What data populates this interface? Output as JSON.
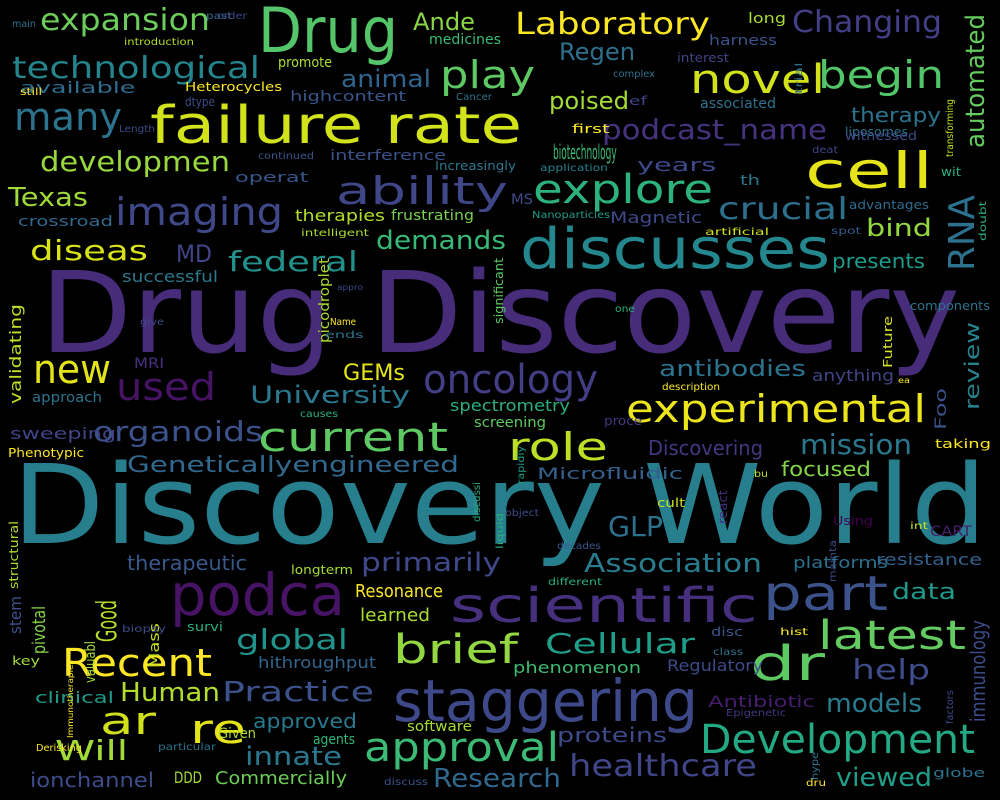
{
  "background": "#000000",
  "words": [
    {
      "text": "Drug Discovery",
      "color": "#472c7a"
    },
    {
      "text": "Discovery World",
      "color": "#277f8e"
    },
    {
      "text": "failure rate",
      "color": "#d2e21b"
    },
    {
      "text": "discusses",
      "color": "#24878e"
    },
    {
      "text": "staggering",
      "color": "#3e4989"
    },
    {
      "text": "Drug",
      "color": "#54c568"
    },
    {
      "text": "scientific",
      "color": "#46307e"
    },
    {
      "text": "podca",
      "color": "#471365"
    },
    {
      "text": "experimental",
      "color": "#ece51b"
    },
    {
      "text": "Development",
      "color": "#23a983"
    },
    {
      "text": "part",
      "color": "#3b528b"
    },
    {
      "text": "ability",
      "color": "#3f4788"
    },
    {
      "text": "oncology",
      "color": "#433e85"
    },
    {
      "text": "explore",
      "color": "#2db27d"
    },
    {
      "text": "cell",
      "color": "#e5e419"
    },
    {
      "text": "approval",
      "color": "#3bbb75"
    },
    {
      "text": "imaging",
      "color": "#3f4889"
    },
    {
      "text": "many",
      "color": "#2c738e"
    },
    {
      "text": "novel",
      "color": "#d2e21b"
    },
    {
      "text": "begin",
      "color": "#52c569"
    },
    {
      "text": "RNA",
      "color": "#2c728e"
    },
    {
      "text": "latest",
      "color": "#63cb5f"
    },
    {
      "text": "Recent",
      "color": "#fde725"
    },
    {
      "text": "brief",
      "color": "#93d741"
    },
    {
      "text": "dr",
      "color": "#5ec962"
    },
    {
      "text": "current",
      "color": "#5ec962"
    },
    {
      "text": "role",
      "color": "#bddf26"
    },
    {
      "text": "healthcare",
      "color": "#404688"
    },
    {
      "text": "new",
      "color": "#e2e418"
    },
    {
      "text": "used",
      "color": "#471365"
    },
    {
      "text": "re",
      "color": "#e5e419"
    },
    {
      "text": "ar",
      "color": "#d0e11c"
    },
    {
      "text": "Practice",
      "color": "#3b528b"
    },
    {
      "text": "play",
      "color": "#5ec962"
    },
    {
      "text": "technological",
      "color": "#25858e"
    },
    {
      "text": "expansion",
      "color": "#6ccd5a"
    },
    {
      "text": "Laboratory",
      "color": "#fde725"
    },
    {
      "text": "Changing",
      "color": "#433e85"
    },
    {
      "text": "automated",
      "color": "#65cb5e"
    },
    {
      "text": "crucial",
      "color": "#2d708e"
    },
    {
      "text": "organoids",
      "color": "#3b528b"
    },
    {
      "text": "Cellular",
      "color": "#1f9e89"
    },
    {
      "text": "Genetically­engineered",
      "color": "#31688e"
    },
    {
      "text": "University",
      "color": "#2a788e"
    },
    {
      "text": "developmen",
      "color": "#98d83e"
    },
    {
      "text": "podcast_name",
      "color": "#46337f"
    },
    {
      "text": "global",
      "color": "#20938c"
    },
    {
      "text": "Will",
      "color": "#a2da37"
    },
    {
      "text": "innate",
      "color": "#2a788e"
    },
    {
      "text": "Research",
      "color": "#31688e"
    },
    {
      "text": "viewed",
      "color": "#1f9e89"
    },
    {
      "text": "help",
      "color": "#3e4c8a"
    },
    {
      "text": "Good",
      "color": "#b8de29"
    },
    {
      "text": "primarily",
      "color": "#3f4889"
    },
    {
      "text": "Association",
      "color": "#287c8e"
    },
    {
      "text": "GLP",
      "color": "#2d708e"
    },
    {
      "text": "models",
      "color": "#297b8e"
    },
    {
      "text": "immunology",
      "color": "#3e4c8a"
    },
    {
      "text": "antibodies",
      "color": "#2c738e"
    },
    {
      "text": "mission",
      "color": "#2a788e"
    },
    {
      "text": "Human",
      "color": "#b2dd2d"
    },
    {
      "text": "review",
      "color": "#26828e"
    },
    {
      "text": "federal",
      "color": "#21918c"
    },
    {
      "text": "demands",
      "color": "#38b977"
    },
    {
      "text": "diseas",
      "color": "#d8e219"
    },
    {
      "text": "Texas",
      "color": "#a0da39"
    },
    {
      "text": "MD",
      "color": "#414487"
    },
    {
      "text": "Ande",
      "color": "#8bd646"
    },
    {
      "text": "Regen",
      "color": "#2d708e"
    },
    {
      "text": "animal",
      "color": "#32658e"
    },
    {
      "text": "poised",
      "color": "#a5db36"
    },
    {
      "text": "therapy",
      "color": "#2c738e"
    },
    {
      "text": "bind",
      "color": "#95d840"
    },
    {
      "text": "presents",
      "color": "#1e9b8a"
    },
    {
      "text": "focused",
      "color": "#85d54a"
    },
    {
      "text": "data",
      "color": "#1f9a8a"
    },
    {
      "text": "resistance",
      "color": "#33628d"
    },
    {
      "text": "biotechnology",
      "color": "#3dbc74"
    },
    {
      "text": "years",
      "color": "#3e4a89"
    },
    {
      "text": "available",
      "color": "#2f6c8e"
    },
    {
      "text": "validating",
      "color": "#c0df25"
    },
    {
      "text": "stem",
      "color": "#3b528b"
    },
    {
      "text": "pivotal",
      "color": "#84d44b"
    },
    {
      "text": "GEMs",
      "color": "#e5e419"
    },
    {
      "text": "Discovering",
      "color": "#453781"
    },
    {
      "text": "Microfluidic",
      "color": "#35608d"
    },
    {
      "text": "therapeutic",
      "color": "#38588c"
    },
    {
      "text": "approved",
      "color": "#29798e"
    },
    {
      "text": "proteins",
      "color": "#3e4a89"
    },
    {
      "text": "Antibiotic",
      "color": "#481d6f"
    },
    {
      "text": "Regulatory",
      "color": "#3e4a89"
    },
    {
      "text": "ionchannel",
      "color": "#3e4c8a"
    },
    {
      "text": "Commercially",
      "color": "#6ece58"
    },
    {
      "text": "DDD",
      "color": "#a5db36"
    },
    {
      "text": "spectrometry",
      "color": "#2ab07f"
    },
    {
      "text": "anything",
      "color": "#414487"
    },
    {
      "text": "Resonance",
      "color": "#fde725"
    },
    {
      "text": "learned",
      "color": "#aadc32"
    },
    {
      "text": "phenomenon",
      "color": "#3fbc73"
    },
    {
      "text": "platforms",
      "color": "#2d708e"
    },
    {
      "text": "hithroughput",
      "color": "#32658e"
    },
    {
      "text": "clinical",
      "color": "#1f9a8a"
    },
    {
      "text": "sweeping",
      "color": "#414487"
    },
    {
      "text": "approach",
      "color": "#2c738e"
    },
    {
      "text": "successful",
      "color": "#2a788e"
    },
    {
      "text": "crossroad",
      "color": "#31688e"
    },
    {
      "text": "interference",
      "color": "#3b528b"
    },
    {
      "text": "Heterocycles",
      "color": "#fde725"
    },
    {
      "text": "highcontent",
      "color": "#39568c"
    },
    {
      "text": "operat",
      "color": "#39568c"
    },
    {
      "text": "therapies",
      "color": "#b5de2b"
    },
    {
      "text": "frustrating",
      "color": "#7ad151"
    },
    {
      "text": "Magnetic",
      "color": "#3e4989"
    },
    {
      "text": "screening",
      "color": "#5ec962"
    },
    {
      "text": "harness",
      "color": "#3b528b"
    },
    {
      "text": "associated",
      "color": "#2c728e"
    },
    {
      "text": "liposomes",
      "color": "#2c738e"
    },
    {
      "text": "medicines",
      "color": "#3bbb75"
    },
    {
      "text": "promote",
      "color": "#addc30"
    },
    {
      "text": "dtype",
      "color": "#3e4c8a"
    },
    {
      "text": "Cancer",
      "color": "#2c738e"
    },
    {
      "text": "long",
      "color": "#a8db34"
    },
    {
      "text": "introduction",
      "color": "#b5de2b"
    },
    {
      "text": "past",
      "color": "#31688e"
    },
    {
      "text": "interest",
      "color": "#414487"
    },
    {
      "text": "Given",
      "color": "#addc30"
    },
    {
      "text": "software",
      "color": "#a5db36"
    },
    {
      "text": "agents",
      "color": "#31b57b"
    },
    {
      "text": "picodroplet",
      "color": "#addc30"
    },
    {
      "text": "significant",
      "color": "#5ec962"
    },
    {
      "text": "Future",
      "color": "#d8e219"
    },
    {
      "text": "MRI",
      "color": "#46307e"
    },
    {
      "text": "Mass",
      "color": "#c8e020"
    },
    {
      "text": "valuabl",
      "color": "#a2da37"
    },
    {
      "text": "structural",
      "color": "#addc30"
    },
    {
      "text": "Phenotypic",
      "color": "#fde725"
    },
    {
      "text": "MS",
      "color": "#3e4a89"
    },
    {
      "text": "Nanoparticles",
      "color": "#1f9e89"
    },
    {
      "text": "wit",
      "color": "#2ab07f"
    },
    {
      "text": "CART",
      "color": "#481d6f"
    },
    {
      "text": "Foo",
      "color": "#3b528b"
    },
    {
      "text": "key",
      "color": "#a0da39"
    },
    {
      "text": "th",
      "color": "#2a788e"
    },
    {
      "text": "ef",
      "color": "#414487"
    },
    {
      "text": "first",
      "color": "#fde725"
    },
    {
      "text": "witnessed",
      "color": "#3e4a89"
    },
    {
      "text": "transforming",
      "color": "#c8e020"
    },
    {
      "text": "doubt",
      "color": "#2ab07f"
    },
    {
      "text": "trial",
      "color": "#2d708e"
    },
    {
      "text": "application",
      "color": "#26828e"
    },
    {
      "text": "Increasingly",
      "color": "#2a788e"
    },
    {
      "text": "continued",
      "color": "#39568c"
    },
    {
      "text": "deat",
      "color": "#3f4788"
    },
    {
      "text": "advantages",
      "color": "#2f6c8e"
    },
    {
      "text": "intelligent",
      "color": "#addc30"
    },
    {
      "text": "artificial",
      "color": "#d0e11c"
    },
    {
      "text": "spot",
      "color": "#38588c"
    },
    {
      "text": "components",
      "color": "#2c738e"
    },
    {
      "text": "one",
      "color": "#2ab07f"
    },
    {
      "text": "taking",
      "color": "#fde725"
    },
    {
      "text": "description",
      "color": "#fde725"
    },
    {
      "text": "causes",
      "color": "#2ab07f"
    },
    {
      "text": "proce",
      "color": "#453781"
    },
    {
      "text": "ea",
      "color": "#fde725"
    },
    {
      "text": "rapidly",
      "color": "#1f9e89"
    },
    {
      "text": "discussi",
      "color": "#2ab07f"
    },
    {
      "text": "liquid",
      "color": "#2ab07f"
    },
    {
      "text": "object",
      "color": "#3e4a89"
    },
    {
      "text": "decades",
      "color": "#39568c"
    },
    {
      "text": "cult",
      "color": "#c8e020"
    },
    {
      "text": "react",
      "color": "#46307e"
    },
    {
      "text": "bu",
      "color": "#bddf26"
    },
    {
      "text": "Using",
      "color": "#440154"
    },
    {
      "text": "int",
      "color": "#c8e020"
    },
    {
      "text": "mainta",
      "color": "#3e4a89"
    },
    {
      "text": "longterm",
      "color": "#a8db34"
    },
    {
      "text": "different",
      "color": "#2ab07f"
    },
    {
      "text": "biopsy",
      "color": "#3e4a89"
    },
    {
      "text": "survi",
      "color": "#2ab07f"
    },
    {
      "text": "disc",
      "color": "#39568c"
    },
    {
      "text": "class",
      "color": "#2c738e"
    },
    {
      "text": "hist",
      "color": "#fde725"
    },
    {
      "text": "factors",
      "color": "#3e4a89"
    },
    {
      "text": "Immunotherapies",
      "color": "#fde725"
    },
    {
      "text": "Derisking",
      "color": "#fde725"
    },
    {
      "text": "particular",
      "color": "#2c738e"
    },
    {
      "text": "Epigenetic",
      "color": "#453781"
    },
    {
      "text": "hype",
      "color": "#2c738e"
    },
    {
      "text": "dru",
      "color": "#fde725"
    },
    {
      "text": "discuss",
      "color": "#3b528b"
    },
    {
      "text": "globe",
      "color": "#2c738e"
    },
    {
      "text": "Name",
      "color": "#fde725"
    },
    {
      "text": "ends",
      "color": "#2c738e"
    },
    {
      "text": "appro",
      "color": "#3e4a89"
    },
    {
      "text": "give",
      "color": "#3e4a89"
    },
    {
      "text": "main",
      "color": "#2c738e"
    },
    {
      "text": "order",
      "color": "#3e4a89"
    },
    {
      "text": "still",
      "color": "#fde725"
    },
    {
      "text": "Length",
      "color": "#3e4a89"
    },
    {
      "text": "complex",
      "color": "#2c738e"
    }
  ]
}
